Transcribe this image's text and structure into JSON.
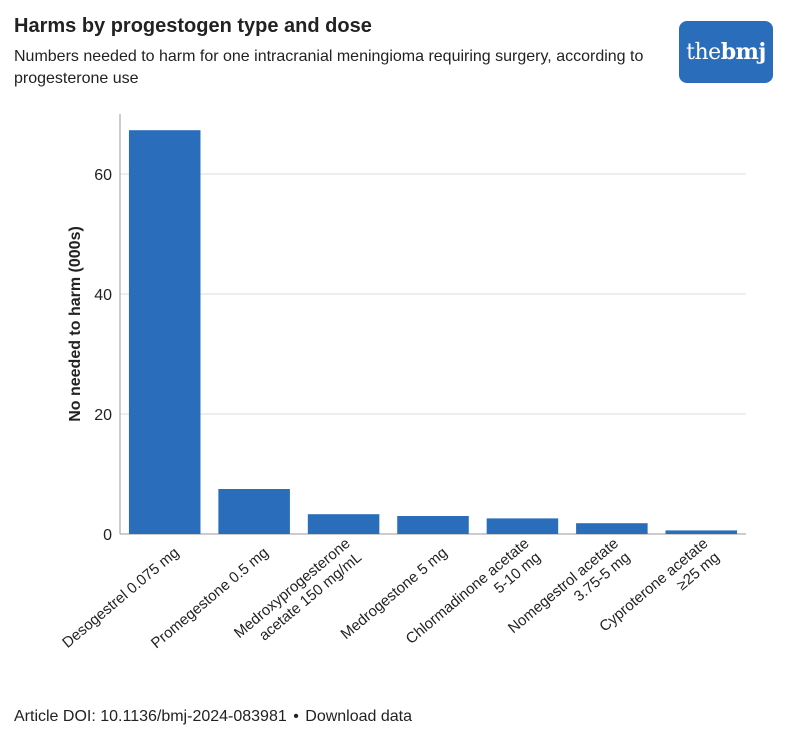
{
  "header": {
    "title": "Harms by progestogen type and dose",
    "subtitle": "Numbers needed to harm for one intracranial meningioma requiring surgery, according to progesterone use"
  },
  "logo": {
    "text_light": "the",
    "text_bold": "bmj"
  },
  "footer": {
    "doi_text": "Article DOI: 10.1136/bmj-2024-083981",
    "separator": "•",
    "download_label": "Download data"
  },
  "colors": {
    "bar": "#2a6ebb",
    "logo_bg": "#2a6ebb",
    "grid": "#dddddd",
    "axis": "#999999"
  },
  "chart_data": {
    "type": "bar",
    "title": "Harms by progestogen type and dose",
    "xlabel": "",
    "ylabel": "No needed to harm (000s)",
    "ylim": [
      0,
      70
    ],
    "yticks": [
      0,
      20,
      40,
      60
    ],
    "grid": true,
    "categories": [
      [
        "Desogestrel 0.075 mg"
      ],
      [
        "Promegestone 0.5 mg"
      ],
      [
        "Medroxyprogesterone",
        "acetate 150 mg/mL"
      ],
      [
        "Medrogestone 5 mg"
      ],
      [
        "Chlormadinone acetate",
        "5-10 mg"
      ],
      [
        "Nomegestrol acetate",
        "3.75-5 mg"
      ],
      [
        "Cyproterone acetate",
        "≥25 mg"
      ]
    ],
    "values": [
      67.3,
      7.5,
      3.3,
      3.0,
      2.6,
      1.8,
      0.6
    ]
  }
}
